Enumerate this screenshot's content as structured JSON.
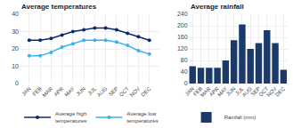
{
  "chart_data": [
    {
      "type": "line",
      "title": "Average temperatures",
      "categories": [
        "JAN",
        "FEB",
        "MAR",
        "APR",
        "MAY",
        "JUN",
        "JUL",
        "AUG",
        "SEP",
        "OCT",
        "NOV",
        "DEC"
      ],
      "series": [
        {
          "name": "Average high\ntemperatures",
          "color": "#0d2b6b",
          "values": [
            25,
            25,
            26,
            28,
            30,
            31,
            32,
            32,
            31,
            29,
            27,
            25
          ]
        },
        {
          "name": "Average low\ntemperatures",
          "color": "#3ab4e8",
          "values": [
            16,
            16,
            18,
            21,
            23,
            25,
            25,
            25,
            24,
            22,
            19,
            17
          ]
        }
      ],
      "marker": "circle",
      "ylim": [
        0,
        40
      ],
      "yticks": [
        0,
        10,
        20,
        30,
        40
      ],
      "grid": true,
      "legend": "bottom"
    },
    {
      "type": "bar",
      "title": "Average rainfall",
      "categories": [
        "JAN",
        "FEB",
        "MAR",
        "APR",
        "MAY",
        "JUN",
        "JUL",
        "AUG",
        "SEP",
        "OCT",
        "NOV",
        "DEC"
      ],
      "series": [
        {
          "name": "Rainfall (mm)",
          "color": "#1a3a6b",
          "values": [
            60,
            55,
            55,
            55,
            80,
            150,
            205,
            120,
            140,
            185,
            140,
            48
          ]
        }
      ],
      "ylim": [
        0,
        240
      ],
      "yticks": [
        0,
        40,
        80,
        120,
        160,
        200,
        240
      ],
      "grid": true,
      "legend": "bottom"
    }
  ]
}
